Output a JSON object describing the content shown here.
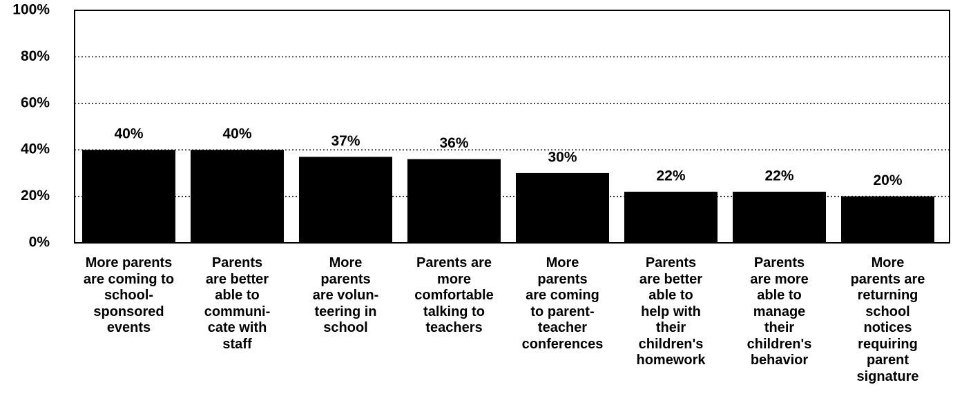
{
  "chart_data": {
    "type": "bar",
    "categories": [
      "More parents\nare coming to\nschool-\nsponsored\nevents",
      "Parents\nare better\nable to\ncommuni-\ncate with\nstaff",
      "More\nparents\nare volun-\nteering in\nschool",
      "Parents are\nmore\ncomfortable\ntalking to\nteachers",
      "More\nparents\nare coming\nto parent-\nteacher\nconferences",
      "Parents\nare better\nable to\nhelp with\ntheir\nchildren's\nhomework",
      "Parents\nare more\nable to\nmanage\ntheir\nchildren's\nbehavior",
      "More\nparents are\nreturning\nschool\nnotices\nrequiring\nparent\nsignature"
    ],
    "values": [
      40,
      40,
      37,
      36,
      30,
      22,
      22,
      20
    ],
    "value_labels": [
      "40%",
      "40%",
      "37%",
      "36%",
      "30%",
      "22%",
      "22%",
      "20%"
    ],
    "color": "#000000",
    "ylim": [
      0,
      100
    ],
    "yticks": [
      {
        "value": 0,
        "label": "0%"
      },
      {
        "value": 20,
        "label": "20%"
      },
      {
        "value": 40,
        "label": "40%"
      },
      {
        "value": 60,
        "label": "60%"
      },
      {
        "value": 80,
        "label": "80%"
      },
      {
        "value": 100,
        "label": "100%"
      }
    ],
    "grid": true
  }
}
